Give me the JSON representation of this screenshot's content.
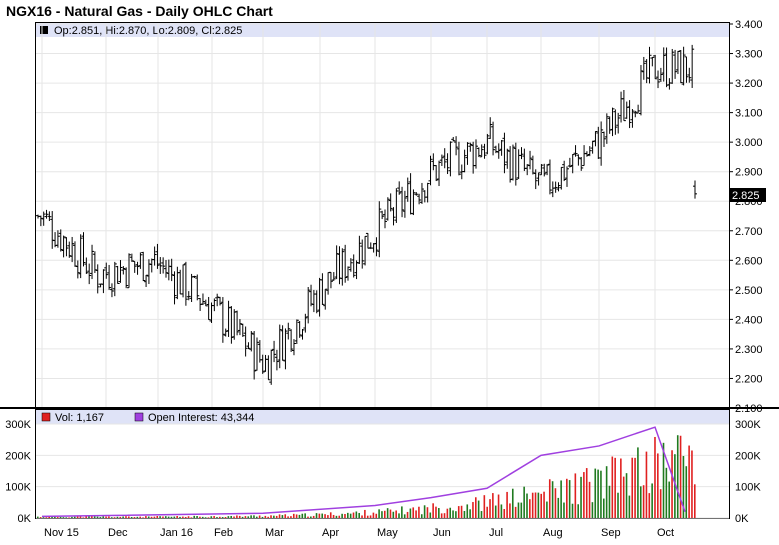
{
  "title": "NGX16 - Natural Gas - Daily OHLC Chart",
  "price_legend": "Op:2.851, Hi:2.870, Lo:2.809, Cl:2.825",
  "volume_legend": {
    "volume": "Vol: 1,167",
    "open_interest": "Open Interest: 43,344"
  },
  "last_price_label": "2.825",
  "colors": {
    "legend_band": "#dfe3f7",
    "volume_up": "#1f7a1f",
    "volume_down": "#e02020",
    "open_interest": "#a040e0",
    "ohlc": "#000000",
    "last_price_box": "#000000"
  },
  "chart_data": [
    {
      "type": "ohlc",
      "title": "",
      "x_tick_labels": [
        "Nov 15",
        "Dec",
        "Jan 16",
        "Feb",
        "Mar",
        "Apr",
        "May",
        "Jun",
        "Jul",
        "Aug",
        "Sep",
        "Oct"
      ],
      "y_tick_labels": [
        "2.100",
        "2.200",
        "2.300",
        "2.400",
        "2.500",
        "2.600",
        "2.700",
        "2.800",
        "2.900",
        "3.000",
        "3.100",
        "3.200",
        "3.300",
        "3.400"
      ],
      "ylim": [
        2.1,
        3.4
      ],
      "last": {
        "open": 2.851,
        "high": 2.87,
        "low": 2.809,
        "close": 2.825
      },
      "close_path": [
        {
          "month": "Nov 15",
          "close": 2.75
        },
        {
          "month": "Dec",
          "close": 2.55
        },
        {
          "month": "Jan 16",
          "close": 2.6
        },
        {
          "month": "Feb",
          "close": 2.45
        },
        {
          "month": "Mar",
          "close": 2.25
        },
        {
          "month": "Apr",
          "close": 2.5
        },
        {
          "month": "May",
          "close": 2.7
        },
        {
          "month": "Jun",
          "close": 2.9
        },
        {
          "month": "Jul",
          "close": 3.0
        },
        {
          "month": "Aug",
          "close": 2.85
        },
        {
          "month": "Sep",
          "close": 3.0
        },
        {
          "month": "Oct",
          "close": 3.25
        }
      ]
    },
    {
      "type": "bar",
      "title": "",
      "y_tick_labels_left": [
        "0K",
        "100K",
        "200K",
        "300K"
      ],
      "y_tick_labels_right": [
        "0K",
        "100K",
        "200K",
        "300K"
      ],
      "ylim": [
        0,
        300000
      ],
      "series": [
        {
          "name": "Vol",
          "type": "bar"
        },
        {
          "name": "Open Interest",
          "type": "line"
        }
      ],
      "open_interest_path": [
        {
          "month": "Nov 15",
          "value": 5000
        },
        {
          "month": "Mar",
          "value": 15000
        },
        {
          "month": "May",
          "value": 40000
        },
        {
          "month": "Jun",
          "value": 65000
        },
        {
          "month": "Jul",
          "value": 95000
        },
        {
          "month": "Aug",
          "value": 200000
        },
        {
          "month": "Sep",
          "value": 230000
        },
        {
          "month": "Oct",
          "value": 290000
        }
      ]
    }
  ]
}
